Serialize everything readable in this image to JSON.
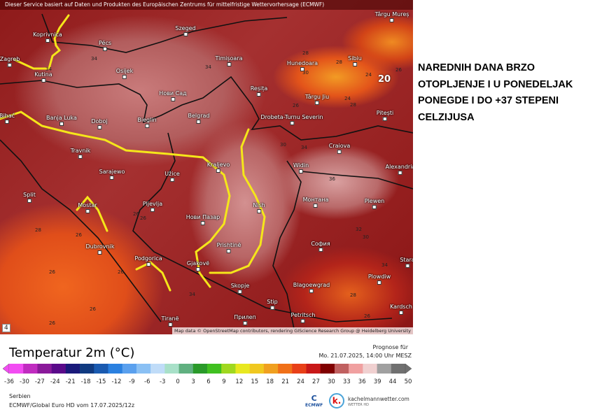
{
  "map": {
    "banner": "Dieser Service basiert auf Daten und Produkten des Europäischen Zentrums für mittelfristige Wettervorhersage (ECMWF)",
    "cities": [
      {
        "name": "Koprivnica"
      },
      {
        "name": "Pécs"
      },
      {
        "name": "Szeged"
      },
      {
        "name": "Zagreb"
      },
      {
        "name": "Kutina"
      },
      {
        "name": "Osijek"
      },
      {
        "name": "Нови Сад"
      },
      {
        "name": "Timișoara"
      },
      {
        "name": "Hunedoara"
      },
      {
        "name": "Sibiu"
      },
      {
        "name": "Târgu Mureș"
      },
      {
        "name": "Reșița"
      },
      {
        "name": "Târgu Jiu"
      },
      {
        "name": "Pitești"
      },
      {
        "name": "Drobeta-Turnu Severin"
      },
      {
        "name": "Craiova"
      },
      {
        "name": "Widin"
      },
      {
        "name": "Alexandria"
      },
      {
        "name": "Bihać"
      },
      {
        "name": "Banja Luka"
      },
      {
        "name": "Doboj"
      },
      {
        "name": "Bieglin"
      },
      {
        "name": "Belgrad"
      },
      {
        "name": "Travnik"
      },
      {
        "name": "Sarajewo"
      },
      {
        "name": "Užice"
      },
      {
        "name": "Kraljevo"
      },
      {
        "name": "Split"
      },
      {
        "name": "Mostar"
      },
      {
        "name": "Pljevlja"
      },
      {
        "name": "Нови Пазар"
      },
      {
        "name": "Nish"
      },
      {
        "name": "Монтана"
      },
      {
        "name": "Plewen"
      },
      {
        "name": "Dubrovnik"
      },
      {
        "name": "Podgorica"
      },
      {
        "name": "Gjakovë"
      },
      {
        "name": "Prishtinë"
      },
      {
        "name": "София"
      },
      {
        "name": "Stara"
      },
      {
        "name": "Skopje"
      },
      {
        "name": "Blagoewgrad"
      },
      {
        "name": "Plowdiw"
      },
      {
        "name": "Stip"
      },
      {
        "name": "Kardsch"
      },
      {
        "name": "Petritsch"
      },
      {
        "name": "Прилеп"
      },
      {
        "name": "Tiranë"
      }
    ],
    "isotherm_labels": [
      "34",
      "34",
      "34",
      "28",
      "30",
      "28",
      "26",
      "24",
      "26",
      "24",
      "28",
      "30",
      "34",
      "28",
      "26",
      "26",
      "26",
      "26",
      "26",
      "26",
      "26",
      "34",
      "36",
      "32",
      "30",
      "34",
      "28",
      "26"
    ],
    "max_label": "20",
    "attribution": "Map data © OpenStreetMap contributors, rendering GIScience Research Group @ Heidelberg University",
    "zoom_level": "4",
    "highlight_line_color": "#f5e61a"
  },
  "note": "NAREDNIH DANA BRZO OTOPLJENJE I U PONEDELJAK PONEGDE I DO +37 STEPENI CELZIJUSA",
  "legend": {
    "title": "Temperatur 2m (°C)",
    "forecast_label": "Prognose für",
    "forecast_time": "Mo. 21.07.2025, 14:00 Uhr MESZ",
    "ticks": [
      "-36",
      "-30",
      "-27",
      "-24",
      "-21",
      "-18",
      "-15",
      "-12",
      "-9",
      "-6",
      "-3",
      "0",
      "3",
      "6",
      "9",
      "12",
      "15",
      "18",
      "21",
      "24",
      "27",
      "30",
      "33",
      "36",
      "39",
      "44",
      "50"
    ],
    "colors": [
      "#f24cf2",
      "#c02cc0",
      "#8a1a9a",
      "#5a0a8a",
      "#1a1a7a",
      "#103a80",
      "#1a5ab0",
      "#2a80e0",
      "#5aa0ee",
      "#8ac0f4",
      "#c0dcf8",
      "#a8e0c8",
      "#60b080",
      "#2a9a2a",
      "#40c020",
      "#a0d820",
      "#e8e820",
      "#f0c820",
      "#f0a020",
      "#f07018",
      "#e84018",
      "#c81818",
      "#800000",
      "#c06060",
      "#f0a0a0",
      "#f0d0d0",
      "#a0a0a0",
      "#707070"
    ],
    "region": "Serbien",
    "source": "ECMWF/Global Euro HD vom  17.07.2025/12z",
    "ecmwf_logo": "ECMWF",
    "brand": "kachelmannwetter.com",
    "brand_sub": "WETTER HD",
    "brand_logo_letter": "k."
  }
}
